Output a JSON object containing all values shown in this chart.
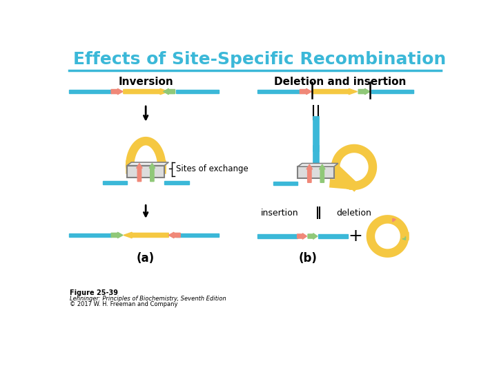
{
  "title": "Effects of Site-Specific Recombination",
  "title_color": "#3BB8D8",
  "title_fontsize": 18,
  "line_color": "#3BB8D8",
  "bg_color": "#FFFFFF",
  "dna_blue": "#3BB8D8",
  "dna_yellow": "#F5C842",
  "arrow_salmon": "#F08878",
  "arrow_green": "#90C878",
  "label_inversion": "Inversion",
  "label_deletion": "Deletion and insertion",
  "label_a": "(a)",
  "label_b": "(b)",
  "label_sites": "Sites of exchange",
  "label_insertion": "insertion",
  "label_deletion2": "deletion",
  "fig_label": "Figure 25-39",
  "fig_sub1": "Lehninger: Principles of Biochemistry, Seventh Edition",
  "fig_sub2": "© 2017 W. H. Freeman and Company"
}
